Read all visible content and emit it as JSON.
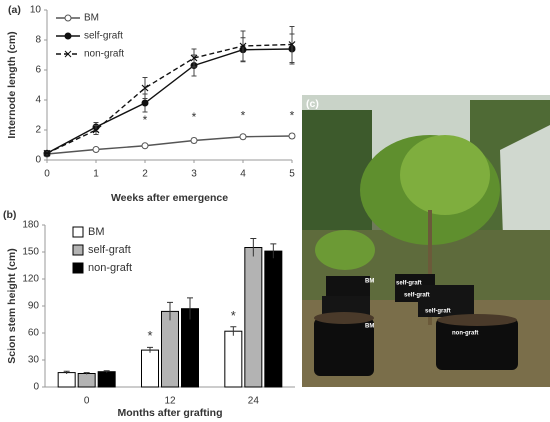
{
  "chart_data": [
    {
      "type": "line",
      "label": "(a)",
      "xlabel": "Weeks after emergence",
      "ylabel": "Internode length (cm)",
      "x": [
        0,
        1,
        2,
        3,
        4,
        5
      ],
      "xlim": [
        0,
        5
      ],
      "xticks": [
        0,
        1,
        2,
        3,
        4,
        5
      ],
      "ylim": [
        0,
        10
      ],
      "yticks": [
        0,
        2,
        4,
        6,
        8,
        10
      ],
      "grid": false,
      "series": [
        {
          "name": "BM",
          "color": "#555555",
          "marker": "open-circle",
          "dash": false,
          "values": [
            0.4,
            0.7,
            0.95,
            1.3,
            1.55,
            1.6
          ],
          "errors": [
            0.1,
            0.1,
            0.1,
            0.15,
            0.15,
            0.15
          ]
        },
        {
          "name": "self-graft",
          "color": "#111111",
          "marker": "filled-circle",
          "dash": false,
          "values": [
            0.45,
            2.2,
            3.8,
            6.3,
            7.35,
            7.4
          ],
          "errors": [
            0.1,
            0.3,
            0.6,
            0.7,
            0.8,
            1.0
          ]
        },
        {
          "name": "non-graft",
          "color": "#111111",
          "marker": "cross",
          "dash": true,
          "values": [
            0.45,
            2.0,
            4.8,
            6.8,
            7.6,
            7.7
          ],
          "errors": [
            0.1,
            0.3,
            0.7,
            0.6,
            1.0,
            1.2
          ]
        }
      ],
      "annotations": [
        {
          "text": "*",
          "x": 2,
          "y": 2.6
        },
        {
          "text": "*",
          "x": 3,
          "y": 2.8
        },
        {
          "text": "*",
          "x": 4,
          "y": 2.9
        },
        {
          "text": "*",
          "x": 5,
          "y": 2.9
        }
      ]
    },
    {
      "type": "bar",
      "label": "(b)",
      "xlabel": "Months after grafting",
      "ylabel": "Scion stem height (cm)",
      "categories": [
        "0",
        "12",
        "24"
      ],
      "ylim": [
        0,
        180
      ],
      "yticks": [
        0,
        30,
        60,
        90,
        120,
        150,
        180
      ],
      "grid": false,
      "series": [
        {
          "name": "BM",
          "color": "#ffffff",
          "values": [
            16,
            41,
            62
          ],
          "errors": [
            1.5,
            3,
            5
          ]
        },
        {
          "name": "self-graft",
          "color": "#b3b3b3",
          "values": [
            15,
            84,
            155
          ],
          "errors": [
            1,
            10,
            10
          ]
        },
        {
          "name": "non-graft",
          "color": "#000000",
          "values": [
            17,
            87,
            151
          ],
          "errors": [
            1,
            12,
            8
          ]
        }
      ],
      "annotations": [
        {
          "text": "*",
          "category": "12",
          "y": 56
        },
        {
          "text": "*",
          "category": "24",
          "y": 78
        }
      ]
    }
  ],
  "photo": {
    "label": "(c)",
    "tags": [
      {
        "text": "BM"
      },
      {
        "text": "self-graft"
      },
      {
        "text": "self-graft"
      },
      {
        "text": "BM"
      },
      {
        "text": "self-graft"
      },
      {
        "text": "non-graft"
      }
    ]
  }
}
